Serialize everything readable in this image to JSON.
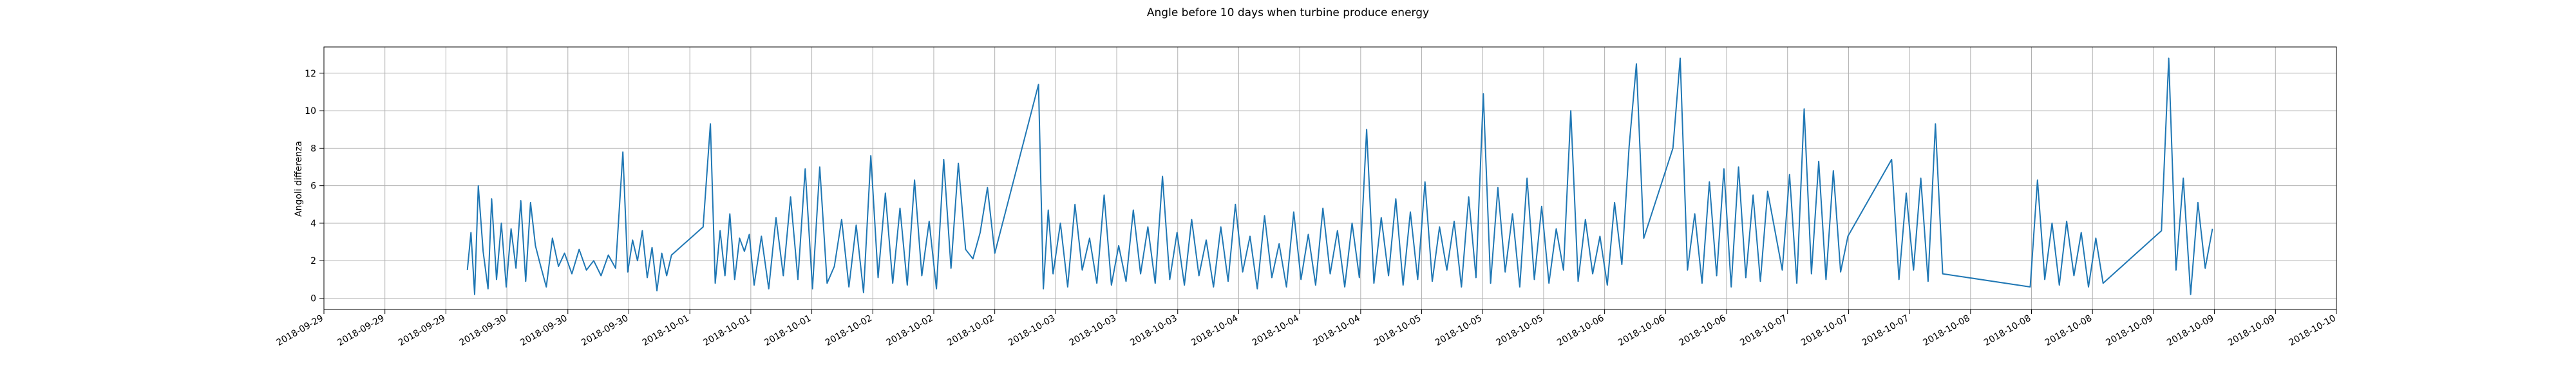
{
  "chart_data": {
    "type": "line",
    "title": "Angle before 10 days when turbine produce energy",
    "ylabel": "Angoli differenza",
    "xlabel": "",
    "grid": true,
    "legend": "none",
    "line_color": "#1f77b4",
    "xlim": [
      "2018-09-28 12:00",
      "2018-10-10 00:00"
    ],
    "ylim": [
      -0.6,
      13.4
    ],
    "y_ticks": [
      0,
      2,
      4,
      6,
      8,
      10,
      12
    ],
    "x_tick_labels": [
      "2018-09-29",
      "2018-09-29",
      "2018-09-29",
      "2018-09-30",
      "2018-09-30",
      "2018-09-30",
      "2018-10-01",
      "2018-10-01",
      "2018-10-01",
      "2018-10-02",
      "2018-10-02",
      "2018-10-02",
      "2018-10-03",
      "2018-10-03",
      "2018-10-03",
      "2018-10-04",
      "2018-10-04",
      "2018-10-04",
      "2018-10-05",
      "2018-10-05",
      "2018-10-05",
      "2018-10-06",
      "2018-10-06",
      "2018-10-06",
      "2018-10-07",
      "2018-10-07",
      "2018-10-07",
      "2018-10-08",
      "2018-10-08",
      "2018-10-08",
      "2018-10-09",
      "2018-10-09",
      "2018-10-09",
      "2018-10-10"
    ],
    "series": [
      {
        "values": [
          [
            "2018-09-29 07:40",
            1.5
          ],
          [
            "2018-09-29 08:10",
            3.5
          ],
          [
            "2018-09-29 08:40",
            0.2
          ],
          [
            "2018-09-29 09:10",
            6.0
          ],
          [
            "2018-09-29 09:50",
            2.5
          ],
          [
            "2018-09-29 10:30",
            0.5
          ],
          [
            "2018-09-29 11:00",
            5.3
          ],
          [
            "2018-09-29 11:40",
            1.0
          ],
          [
            "2018-09-29 12:20",
            4.0
          ],
          [
            "2018-09-29 13:00",
            0.6
          ],
          [
            "2018-09-29 13:40",
            3.7
          ],
          [
            "2018-09-29 14:20",
            1.6
          ],
          [
            "2018-09-29 15:00",
            5.2
          ],
          [
            "2018-09-29 15:40",
            0.9
          ],
          [
            "2018-09-29 16:20",
            5.1
          ],
          [
            "2018-09-29 17:00",
            2.8
          ],
          [
            "2018-09-29 17:40",
            1.8
          ],
          [
            "2018-09-29 18:30",
            0.6
          ],
          [
            "2018-09-29 19:20",
            3.2
          ],
          [
            "2018-09-29 20:10",
            1.7
          ],
          [
            "2018-09-29 21:00",
            2.4
          ],
          [
            "2018-09-29 22:00",
            1.3
          ],
          [
            "2018-09-29 23:00",
            2.6
          ],
          [
            "2018-09-30 00:00",
            1.5
          ],
          [
            "2018-09-30 01:00",
            2.0
          ],
          [
            "2018-09-30 02:00",
            1.2
          ],
          [
            "2018-09-30 03:00",
            2.3
          ],
          [
            "2018-09-30 04:00",
            1.6
          ],
          [
            "2018-09-30 05:00",
            7.8
          ],
          [
            "2018-09-30 05:40",
            1.4
          ],
          [
            "2018-09-30 06:20",
            3.1
          ],
          [
            "2018-09-30 07:00",
            2.0
          ],
          [
            "2018-09-30 07:40",
            3.6
          ],
          [
            "2018-09-30 08:20",
            1.1
          ],
          [
            "2018-09-30 09:00",
            2.7
          ],
          [
            "2018-09-30 09:40",
            0.4
          ],
          [
            "2018-09-30 10:20",
            2.4
          ],
          [
            "2018-09-30 11:00",
            1.2
          ],
          [
            "2018-09-30 11:40",
            2.3
          ],
          [
            "2018-09-30 16:00",
            3.8
          ],
          [
            "2018-09-30 17:00",
            9.3
          ],
          [
            "2018-09-30 17:40",
            0.8
          ],
          [
            "2018-09-30 18:20",
            3.6
          ],
          [
            "2018-09-30 19:00",
            1.2
          ],
          [
            "2018-09-30 19:40",
            4.5
          ],
          [
            "2018-09-30 20:20",
            1.0
          ],
          [
            "2018-09-30 21:00",
            3.2
          ],
          [
            "2018-09-30 21:40",
            2.5
          ],
          [
            "2018-09-30 22:20",
            3.4
          ],
          [
            "2018-09-30 23:00",
            0.7
          ],
          [
            "2018-10-01 00:00",
            3.3
          ],
          [
            "2018-10-01 01:00",
            0.5
          ],
          [
            "2018-10-01 02:00",
            4.3
          ],
          [
            "2018-10-01 03:00",
            1.2
          ],
          [
            "2018-10-01 04:00",
            5.4
          ],
          [
            "2018-10-01 05:00",
            1.0
          ],
          [
            "2018-10-01 06:00",
            6.9
          ],
          [
            "2018-10-01 07:00",
            0.5
          ],
          [
            "2018-10-01 08:00",
            7.0
          ],
          [
            "2018-10-01 09:00",
            0.8
          ],
          [
            "2018-10-01 10:00",
            1.7
          ],
          [
            "2018-10-01 11:00",
            4.2
          ],
          [
            "2018-10-01 12:00",
            0.6
          ],
          [
            "2018-10-01 13:00",
            3.9
          ],
          [
            "2018-10-01 14:00",
            0.3
          ],
          [
            "2018-10-01 15:00",
            7.6
          ],
          [
            "2018-10-01 16:00",
            1.1
          ],
          [
            "2018-10-01 17:00",
            5.6
          ],
          [
            "2018-10-01 18:00",
            0.8
          ],
          [
            "2018-10-01 19:00",
            4.8
          ],
          [
            "2018-10-01 20:00",
            0.7
          ],
          [
            "2018-10-01 21:00",
            6.3
          ],
          [
            "2018-10-01 22:00",
            1.2
          ],
          [
            "2018-10-01 23:00",
            4.1
          ],
          [
            "2018-10-02 00:00",
            0.5
          ],
          [
            "2018-10-02 01:00",
            7.4
          ],
          [
            "2018-10-02 02:00",
            1.6
          ],
          [
            "2018-10-02 03:00",
            7.2
          ],
          [
            "2018-10-02 04:00",
            2.6
          ],
          [
            "2018-10-02 05:00",
            2.1
          ],
          [
            "2018-10-02 06:00",
            3.5
          ],
          [
            "2018-10-02 07:00",
            5.9
          ],
          [
            "2018-10-02 08:00",
            2.4
          ],
          [
            "2018-10-02 14:00",
            11.4
          ],
          [
            "2018-10-02 14:40",
            0.5
          ],
          [
            "2018-10-02 15:20",
            4.7
          ],
          [
            "2018-10-02 16:00",
            1.3
          ],
          [
            "2018-10-02 17:00",
            4.0
          ],
          [
            "2018-10-02 18:00",
            0.6
          ],
          [
            "2018-10-02 19:00",
            5.0
          ],
          [
            "2018-10-02 20:00",
            1.5
          ],
          [
            "2018-10-02 21:00",
            3.2
          ],
          [
            "2018-10-02 22:00",
            0.8
          ],
          [
            "2018-10-02 23:00",
            5.5
          ],
          [
            "2018-10-03 00:00",
            0.7
          ],
          [
            "2018-10-03 01:00",
            2.8
          ],
          [
            "2018-10-03 02:00",
            0.9
          ],
          [
            "2018-10-03 03:00",
            4.7
          ],
          [
            "2018-10-03 04:00",
            1.3
          ],
          [
            "2018-10-03 05:00",
            3.8
          ],
          [
            "2018-10-03 06:00",
            0.8
          ],
          [
            "2018-10-03 07:00",
            6.5
          ],
          [
            "2018-10-03 08:00",
            1.0
          ],
          [
            "2018-10-03 09:00",
            3.5
          ],
          [
            "2018-10-03 10:00",
            0.7
          ],
          [
            "2018-10-03 11:00",
            4.2
          ],
          [
            "2018-10-03 12:00",
            1.2
          ],
          [
            "2018-10-03 13:00",
            3.1
          ],
          [
            "2018-10-03 14:00",
            0.6
          ],
          [
            "2018-10-03 15:00",
            3.8
          ],
          [
            "2018-10-03 16:00",
            0.9
          ],
          [
            "2018-10-03 17:00",
            5.0
          ],
          [
            "2018-10-03 18:00",
            1.4
          ],
          [
            "2018-10-03 19:00",
            3.3
          ],
          [
            "2018-10-03 20:00",
            0.5
          ],
          [
            "2018-10-03 21:00",
            4.4
          ],
          [
            "2018-10-03 22:00",
            1.1
          ],
          [
            "2018-10-03 23:00",
            2.9
          ],
          [
            "2018-10-04 00:00",
            0.6
          ],
          [
            "2018-10-04 01:00",
            4.6
          ],
          [
            "2018-10-04 02:00",
            1.0
          ],
          [
            "2018-10-04 03:00",
            3.4
          ],
          [
            "2018-10-04 04:00",
            0.7
          ],
          [
            "2018-10-04 05:00",
            4.8
          ],
          [
            "2018-10-04 06:00",
            1.3
          ],
          [
            "2018-10-04 07:00",
            3.6
          ],
          [
            "2018-10-04 08:00",
            0.6
          ],
          [
            "2018-10-04 09:00",
            4.0
          ],
          [
            "2018-10-04 10:00",
            1.1
          ],
          [
            "2018-10-04 11:00",
            9.0
          ],
          [
            "2018-10-04 12:00",
            0.8
          ],
          [
            "2018-10-04 13:00",
            4.3
          ],
          [
            "2018-10-04 14:00",
            1.2
          ],
          [
            "2018-10-04 15:00",
            5.3
          ],
          [
            "2018-10-04 16:00",
            0.7
          ],
          [
            "2018-10-04 17:00",
            4.6
          ],
          [
            "2018-10-04 18:00",
            1.0
          ],
          [
            "2018-10-04 19:00",
            6.2
          ],
          [
            "2018-10-04 20:00",
            0.9
          ],
          [
            "2018-10-04 21:00",
            3.8
          ],
          [
            "2018-10-04 22:00",
            1.5
          ],
          [
            "2018-10-04 23:00",
            4.1
          ],
          [
            "2018-10-05 00:00",
            0.6
          ],
          [
            "2018-10-05 01:00",
            5.4
          ],
          [
            "2018-10-05 02:00",
            1.1
          ],
          [
            "2018-10-05 03:00",
            10.9
          ],
          [
            "2018-10-05 04:00",
            0.8
          ],
          [
            "2018-10-05 05:00",
            5.9
          ],
          [
            "2018-10-05 06:00",
            1.4
          ],
          [
            "2018-10-05 07:00",
            4.5
          ],
          [
            "2018-10-05 08:00",
            0.6
          ],
          [
            "2018-10-05 09:00",
            6.4
          ],
          [
            "2018-10-05 10:00",
            1.0
          ],
          [
            "2018-10-05 11:00",
            4.9
          ],
          [
            "2018-10-05 12:00",
            0.8
          ],
          [
            "2018-10-05 13:00",
            3.7
          ],
          [
            "2018-10-05 14:00",
            1.5
          ],
          [
            "2018-10-05 15:00",
            10.0
          ],
          [
            "2018-10-05 16:00",
            0.9
          ],
          [
            "2018-10-05 17:00",
            4.2
          ],
          [
            "2018-10-05 18:00",
            1.3
          ],
          [
            "2018-10-05 19:00",
            3.3
          ],
          [
            "2018-10-05 20:00",
            0.7
          ],
          [
            "2018-10-05 21:00",
            5.1
          ],
          [
            "2018-10-05 22:00",
            1.8
          ],
          [
            "2018-10-05 23:00",
            8.1
          ],
          [
            "2018-10-06 00:00",
            12.5
          ],
          [
            "2018-10-06 01:00",
            3.2
          ],
          [
            "2018-10-06 05:00",
            8.0
          ],
          [
            "2018-10-06 06:00",
            12.8
          ],
          [
            "2018-10-06 07:00",
            1.5
          ],
          [
            "2018-10-06 08:00",
            4.5
          ],
          [
            "2018-10-06 09:00",
            0.8
          ],
          [
            "2018-10-06 10:00",
            6.2
          ],
          [
            "2018-10-06 11:00",
            1.2
          ],
          [
            "2018-10-06 12:00",
            6.9
          ],
          [
            "2018-10-06 13:00",
            0.6
          ],
          [
            "2018-10-06 14:00",
            7.0
          ],
          [
            "2018-10-06 15:00",
            1.1
          ],
          [
            "2018-10-06 16:00",
            5.5
          ],
          [
            "2018-10-06 17:00",
            0.9
          ],
          [
            "2018-10-06 18:00",
            5.7
          ],
          [
            "2018-10-06 20:00",
            1.5
          ],
          [
            "2018-10-06 21:00",
            6.6
          ],
          [
            "2018-10-06 22:00",
            0.8
          ],
          [
            "2018-10-06 23:00",
            10.1
          ],
          [
            "2018-10-07 00:00",
            1.3
          ],
          [
            "2018-10-07 01:00",
            7.3
          ],
          [
            "2018-10-07 02:00",
            1.0
          ],
          [
            "2018-10-07 03:00",
            6.8
          ],
          [
            "2018-10-07 04:00",
            1.4
          ],
          [
            "2018-10-07 05:00",
            3.3
          ],
          [
            "2018-10-07 11:00",
            7.4
          ],
          [
            "2018-10-07 12:00",
            1.0
          ],
          [
            "2018-10-07 13:00",
            5.6
          ],
          [
            "2018-10-07 14:00",
            1.5
          ],
          [
            "2018-10-07 15:00",
            6.4
          ],
          [
            "2018-10-07 16:00",
            0.9
          ],
          [
            "2018-10-07 17:00",
            9.3
          ],
          [
            "2018-10-07 18:00",
            1.3
          ],
          [
            "2018-10-08 06:00",
            0.6
          ],
          [
            "2018-10-08 07:00",
            6.3
          ],
          [
            "2018-10-08 08:00",
            1.0
          ],
          [
            "2018-10-08 09:00",
            4.0
          ],
          [
            "2018-10-08 10:00",
            0.7
          ],
          [
            "2018-10-08 11:00",
            4.1
          ],
          [
            "2018-10-08 12:00",
            1.2
          ],
          [
            "2018-10-08 13:00",
            3.5
          ],
          [
            "2018-10-08 14:00",
            0.6
          ],
          [
            "2018-10-08 15:00",
            3.2
          ],
          [
            "2018-10-08 16:00",
            0.8
          ],
          [
            "2018-10-09 00:00",
            3.6
          ],
          [
            "2018-10-09 01:00",
            12.8
          ],
          [
            "2018-10-09 02:00",
            1.5
          ],
          [
            "2018-10-09 03:00",
            6.4
          ],
          [
            "2018-10-09 04:00",
            0.2
          ],
          [
            "2018-10-09 05:00",
            5.1
          ],
          [
            "2018-10-09 06:00",
            1.6
          ],
          [
            "2018-10-09 07:00",
            3.7
          ]
        ]
      }
    ]
  }
}
